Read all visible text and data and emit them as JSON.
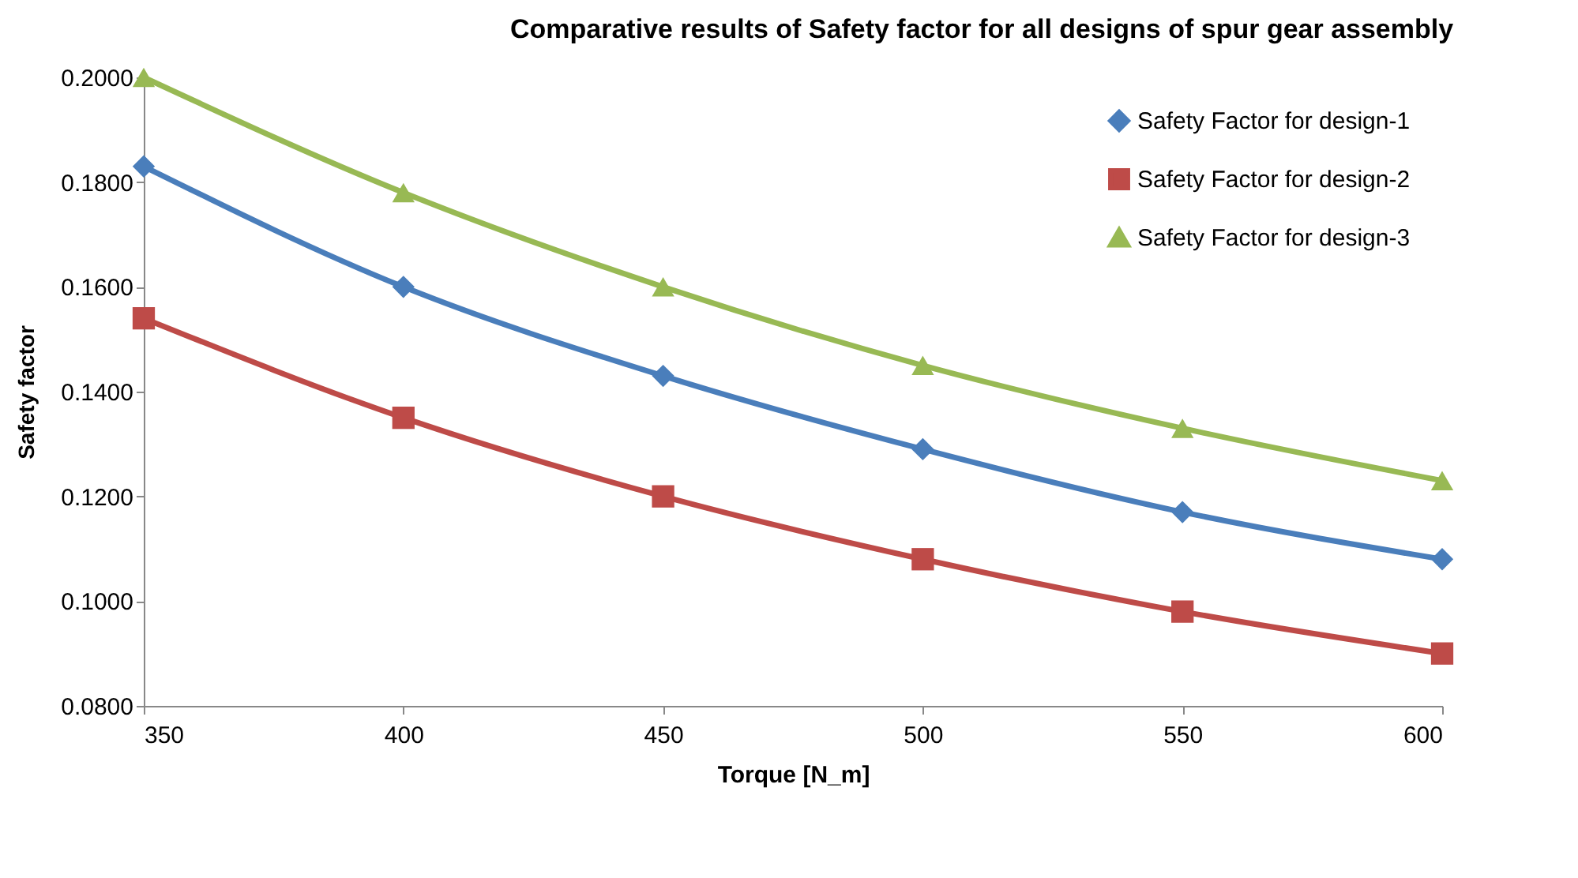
{
  "chart_data": {
    "type": "line",
    "title": "Comparative results of Safety factor for all designs of spur gear assembly",
    "xlabel": "Torque [N_m]",
    "ylabel": "Safety factor",
    "x": [
      350,
      400,
      450,
      500,
      550,
      600
    ],
    "series": [
      {
        "name": "Safety Factor for design-1",
        "color": "#4a7ebb",
        "marker": "diamond",
        "values": [
          0.183,
          0.16,
          0.143,
          0.129,
          0.117,
          0.108
        ]
      },
      {
        "name": "Safety Factor for design-2",
        "color": "#be4b48",
        "marker": "square",
        "values": [
          0.154,
          0.135,
          0.12,
          0.108,
          0.098,
          0.09
        ]
      },
      {
        "name": "Safety Factor for design-3",
        "color": "#98b954",
        "marker": "triangle",
        "values": [
          0.2,
          0.178,
          0.16,
          0.145,
          0.133,
          0.123
        ]
      }
    ],
    "xlim": [
      350,
      600
    ],
    "xticks": [
      350,
      400,
      450,
      500,
      550,
      600
    ],
    "ylim": [
      0.08,
      0.2
    ],
    "yticks": [
      {
        "value": 0.08,
        "label": "0.0800"
      },
      {
        "value": 0.1,
        "label": "0.1000"
      },
      {
        "value": 0.12,
        "label": "0.1200"
      },
      {
        "value": 0.14,
        "label": "0.1400"
      },
      {
        "value": 0.16,
        "label": "0.1600"
      },
      {
        "value": 0.18,
        "label": "0.1800"
      },
      {
        "value": 0.2,
        "label": "0.2000"
      }
    ],
    "grid": false,
    "legend": "top right",
    "line_style": "solid"
  }
}
